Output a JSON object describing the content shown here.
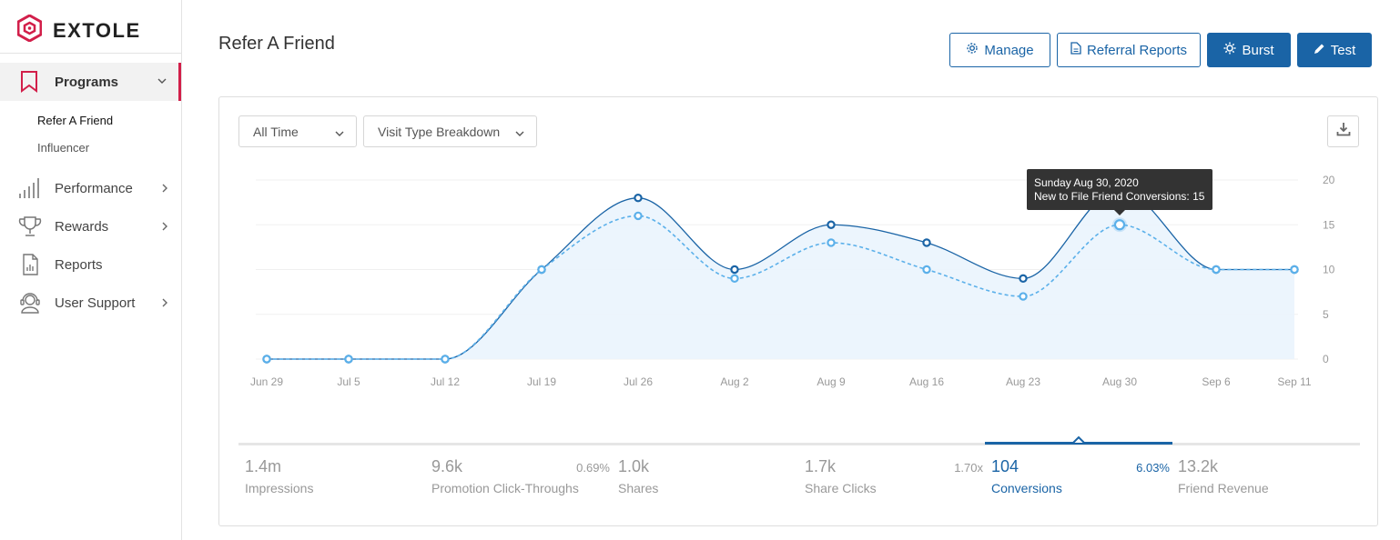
{
  "brand": {
    "name": "EXTOLE",
    "color": "#d21f4a",
    "accent": "#1a64a6"
  },
  "sidebar": {
    "programs_label": "Programs",
    "sub_items": [
      {
        "label": "Refer A Friend"
      },
      {
        "label": "Influencer"
      }
    ],
    "items": [
      {
        "label": "Performance",
        "icon": "bar-chart-icon",
        "has_chevron": true
      },
      {
        "label": "Rewards",
        "icon": "trophy-icon",
        "has_chevron": true
      },
      {
        "label": "Reports",
        "icon": "report-document-icon",
        "has_chevron": false
      },
      {
        "label": "User Support",
        "icon": "support-agent-icon",
        "has_chevron": true
      }
    ]
  },
  "header": {
    "title": "Refer A Friend",
    "buttons": {
      "manage": "Manage",
      "referral_reports": "Referral Reports",
      "burst": "Burst",
      "test": "Test"
    }
  },
  "filters": {
    "time": "All Time",
    "breakdown": "Visit Type Breakdown"
  },
  "tooltip": {
    "date": "Sunday Aug 30, 2020",
    "text": "New to File Friend Conversions: 15"
  },
  "chart_data": {
    "type": "area",
    "categories": [
      "Jun 29",
      "Jul 5",
      "Jul 12",
      "Jul 19",
      "Jul 26",
      "Aug 2",
      "Aug 9",
      "Aug 16",
      "Aug 23",
      "Aug 30",
      "Sep 6",
      "Sep 11"
    ],
    "series": [
      {
        "values": [
          0,
          0,
          0,
          10,
          18,
          10,
          15,
          13,
          9,
          19,
          10,
          10
        ],
        "color": "#1a64a6"
      },
      {
        "name": "New to File Friend Conversions",
        "values": [
          0,
          0,
          0,
          10,
          16,
          9,
          13,
          10,
          7,
          15,
          10,
          10
        ],
        "color": "#5bb0ea"
      }
    ],
    "y_ticks": [
      "0",
      "5",
      "10",
      "15",
      "20"
    ],
    "ylim": [
      0,
      20
    ],
    "grid": true
  },
  "stats": [
    {
      "value": "1.4m",
      "label": "Impressions",
      "pct": ""
    },
    {
      "value": "9.6k",
      "label": "Promotion Click-Throughs",
      "pct": "0.69%"
    },
    {
      "value": "1.0k",
      "label": "Shares",
      "pct": ""
    },
    {
      "value": "1.7k",
      "label": "Share Clicks",
      "pct": "1.70x"
    },
    {
      "value": "104",
      "label": "Conversions",
      "pct": "6.03%"
    },
    {
      "value": "13.2k",
      "label": "Friend Revenue",
      "pct": ""
    }
  ]
}
